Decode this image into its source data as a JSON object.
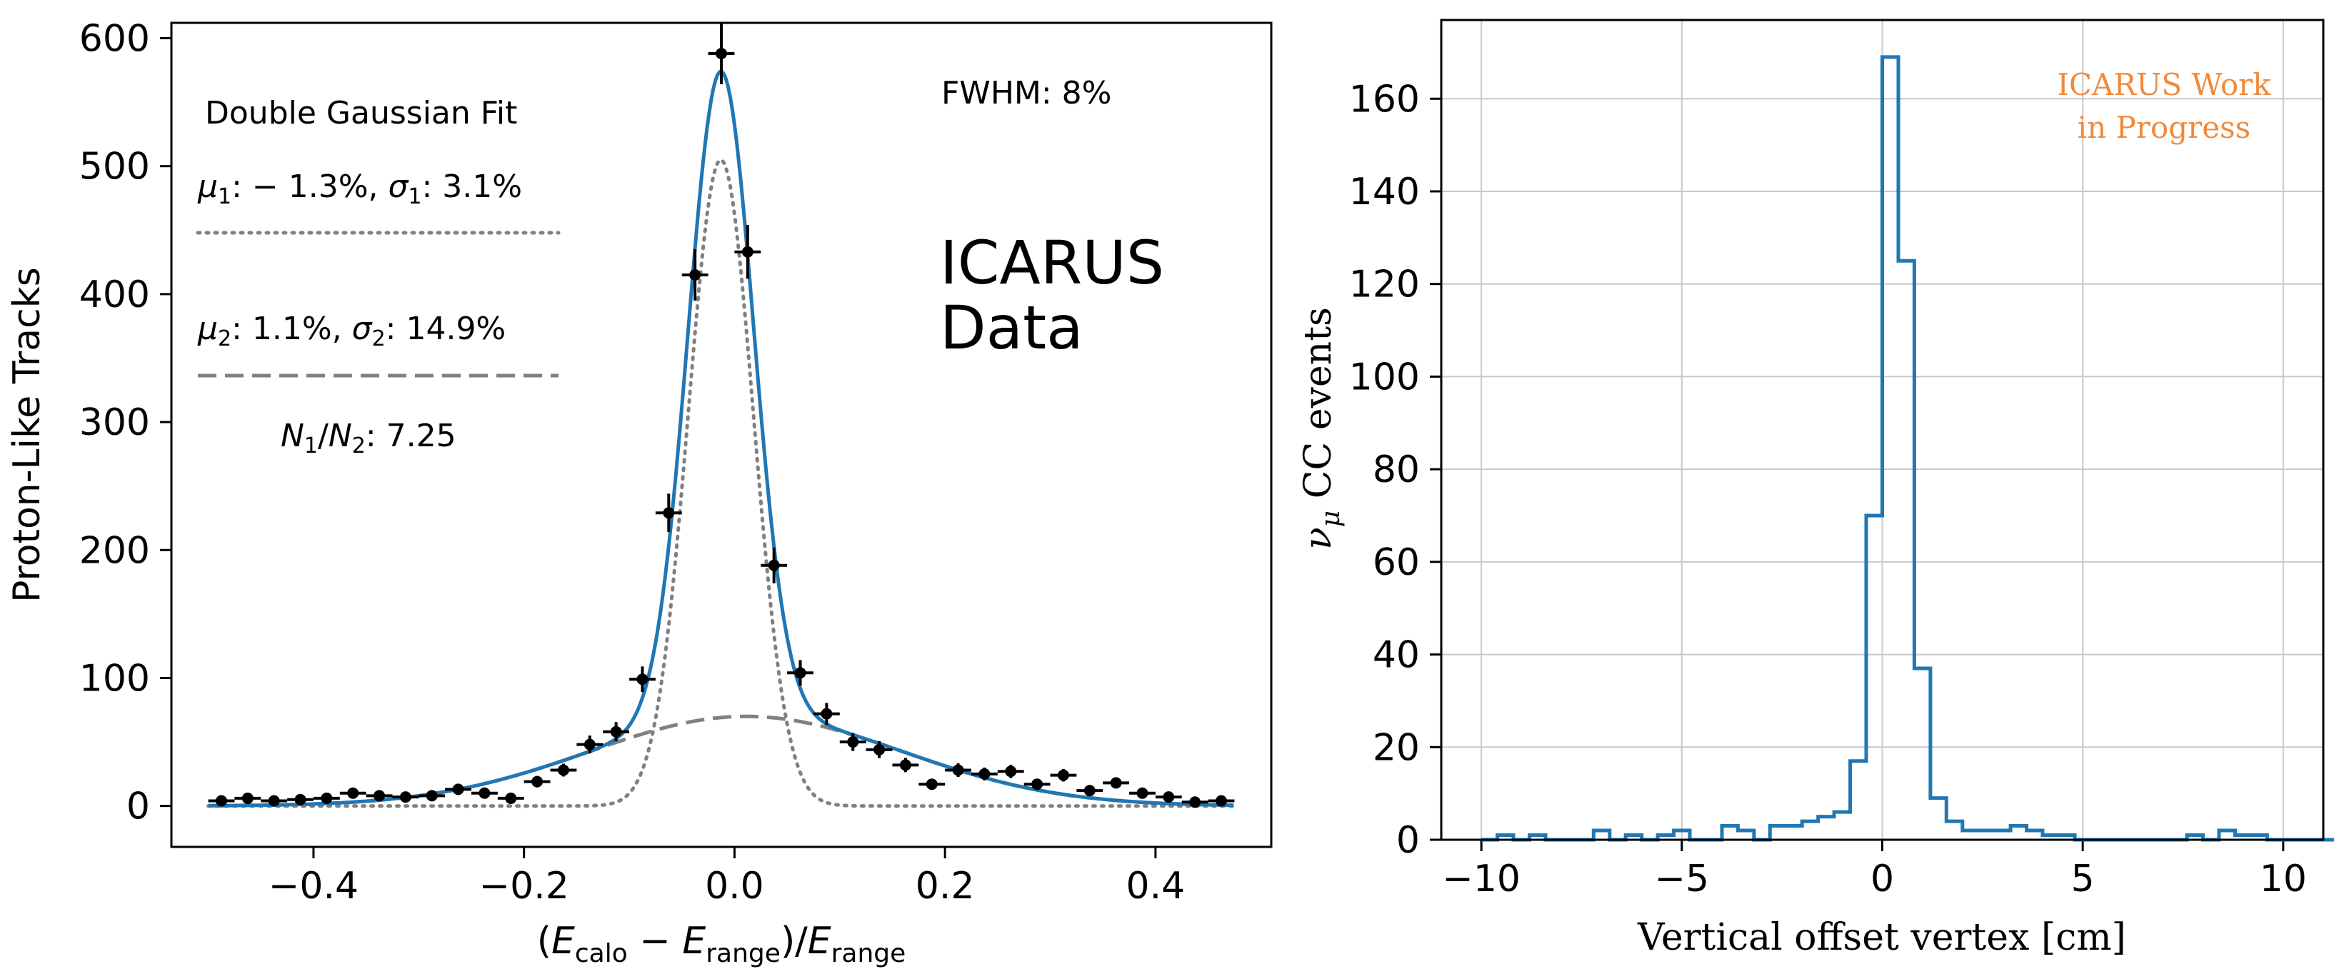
{
  "chart_data": [
    {
      "type": "scatter",
      "xlabel": "(E_calo − E_range)/E_range",
      "xlabel_parts": {
        "open": "(",
        "E": "E",
        "calo": "calo",
        "minus": " − ",
        "range": "range",
        "close_div": ")/"
      },
      "ylabel": "Proton-Like Tracks",
      "xlim": [
        -0.535,
        0.51
      ],
      "ylim": [
        -32,
        612
      ],
      "xticks": [
        -0.4,
        -0.2,
        0.0,
        0.2,
        0.4
      ],
      "xtick_labels": [
        "−0.4",
        "−0.2",
        "0.0",
        "0.2",
        "0.4"
      ],
      "yticks": [
        0,
        100,
        200,
        300,
        400,
        500,
        600
      ],
      "ytick_labels": [
        "0",
        "100",
        "200",
        "300",
        "400",
        "500",
        "600"
      ],
      "grid": false,
      "annotations": {
        "fwhm": "FWHM: 8%",
        "big_line1": "ICARUS",
        "big_line2": "Data"
      },
      "legend": {
        "title": "Double Gaussian Fit",
        "entry1_text": ": − 1.3%, ",
        "entry1_sigma_text": ": 3.1%",
        "entry2_text": ": 1.1%, ",
        "entry2_sigma_text": ": 14.9%",
        "ratio_text": ": 7.25",
        "mu": "μ",
        "sigma": "σ",
        "N": "N",
        "sub1": "1",
        "sub2": "2",
        "slash": "/"
      },
      "fit": {
        "total_color": "#1f77b4",
        "component_color": "#808080",
        "g1": {
          "mu": -0.013,
          "sigma": 0.031,
          "amplitude": 505
        },
        "g2": {
          "mu": 0.011,
          "sigma": 0.149,
          "amplitude": 70
        }
      },
      "bin_half_width": 0.0125,
      "points": {
        "x": [
          -0.4875,
          -0.4625,
          -0.4375,
          -0.4125,
          -0.3875,
          -0.3625,
          -0.3375,
          -0.3125,
          -0.2875,
          -0.2625,
          -0.2375,
          -0.2125,
          -0.1875,
          -0.1625,
          -0.1375,
          -0.1125,
          -0.0875,
          -0.0625,
          -0.0375,
          -0.0125,
          0.0125,
          0.0375,
          0.0625,
          0.0875,
          0.1125,
          0.1375,
          0.1625,
          0.1875,
          0.2125,
          0.2375,
          0.2625,
          0.2875,
          0.3125,
          0.3375,
          0.3625,
          0.3875,
          0.4125,
          0.4375,
          0.4625
        ],
        "y": [
          4,
          6,
          4,
          5,
          6,
          10,
          8,
          7,
          8,
          13,
          10,
          6,
          19,
          28,
          48,
          58,
          99,
          229,
          415,
          588,
          433,
          188,
          104,
          72,
          50,
          44,
          32,
          17,
          28,
          25,
          27,
          17,
          24,
          12,
          18,
          10,
          7,
          3,
          4
        ],
        "err": [
          2,
          2.5,
          2,
          2,
          2.5,
          3,
          3,
          3,
          3,
          3.5,
          3,
          2.5,
          4.5,
          5,
          7,
          7.5,
          10,
          15,
          20,
          24,
          21,
          14,
          10,
          8.5,
          7,
          6.6,
          5.6,
          4.1,
          5.3,
          5,
          5.2,
          4.1,
          4.9,
          3.5,
          4.2,
          3.2,
          2.6,
          2,
          2
        ]
      }
    },
    {
      "type": "histogram",
      "xlabel": "Vertical offset vertex [cm]",
      "ylabel_nu": "ν",
      "ylabel_mu": "μ",
      "ylabel_rest": " CC events",
      "xlim": [
        -11,
        11
      ],
      "ylim": [
        0,
        177
      ],
      "xticks": [
        -10,
        -5,
        0,
        5,
        10
      ],
      "xtick_labels": [
        "−10",
        "−5",
        "0",
        "5",
        "10"
      ],
      "yticks": [
        0,
        20,
        40,
        60,
        80,
        100,
        120,
        140,
        160
      ],
      "ytick_labels": [
        "0",
        "20",
        "40",
        "60",
        "80",
        "100",
        "120",
        "140",
        "160"
      ],
      "grid": true,
      "line_color": "#1f77b4",
      "annotation_line1": "ICARUS Work",
      "annotation_line2": "in Progress",
      "annotation_color": "#f08a3c",
      "bin_edges_start": -10,
      "bin_width": 0.4,
      "counts": [
        0,
        1,
        0,
        1,
        0,
        0,
        0,
        2,
        0,
        1,
        0,
        1,
        2,
        0,
        0,
        3,
        2,
        0,
        3,
        3,
        4,
        5,
        6,
        17,
        70,
        169,
        125,
        37,
        9,
        4,
        2,
        2,
        2,
        3,
        2,
        1,
        1,
        0,
        0,
        0,
        0,
        0,
        0,
        0,
        1,
        0,
        2,
        1,
        1,
        0,
        0,
        0,
        0,
        0,
        0,
        0,
        0,
        0,
        0,
        0
      ]
    }
  ]
}
